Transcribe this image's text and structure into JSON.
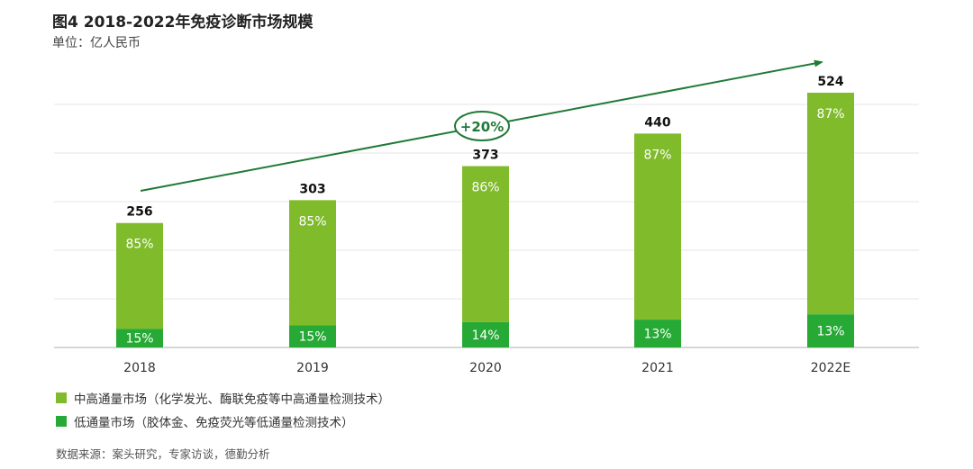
{
  "title": "图4 2018-2022年免疫诊断市场规模",
  "unit": "单位：亿人民币",
  "colors": {
    "high": "#7fbb2a",
    "low": "#26a935",
    "arrow": "#1f7a37",
    "grid": "#e6e6e6",
    "axis": "#bdbdbd"
  },
  "chart_data": {
    "type": "bar",
    "stacked": true,
    "categories": [
      "2018",
      "2019",
      "2020",
      "2021",
      "2022E"
    ],
    "totals": [
      256,
      303,
      373,
      440,
      524
    ],
    "total_labels": [
      "256",
      "303",
      "373",
      "440",
      "524"
    ],
    "series": [
      {
        "name": "中高通量市场（化学发光、酶联免疫等中高通量检测技术）",
        "share_percent": [
          85,
          85,
          86,
          87,
          87
        ],
        "labels": [
          "85%",
          "85%",
          "86%",
          "87%",
          "87%"
        ]
      },
      {
        "name": "低通量市场（胶体金、免疫荧光等低通量检测技术）",
        "share_percent": [
          15,
          15,
          14,
          13,
          13
        ],
        "labels": [
          "15%",
          "15%",
          "14%",
          "13%",
          "13%"
        ]
      }
    ],
    "ylim": [
      0,
      524
    ],
    "annotation": "+20%"
  },
  "legend": {
    "high": "中高通量市场（化学发光、酶联免疫等中高通量检测技术）",
    "low": "低通量市场（胶体金、免疫荧光等低通量检测技术）"
  },
  "source": "数据来源：案头研究，专家访谈，德勤分析"
}
